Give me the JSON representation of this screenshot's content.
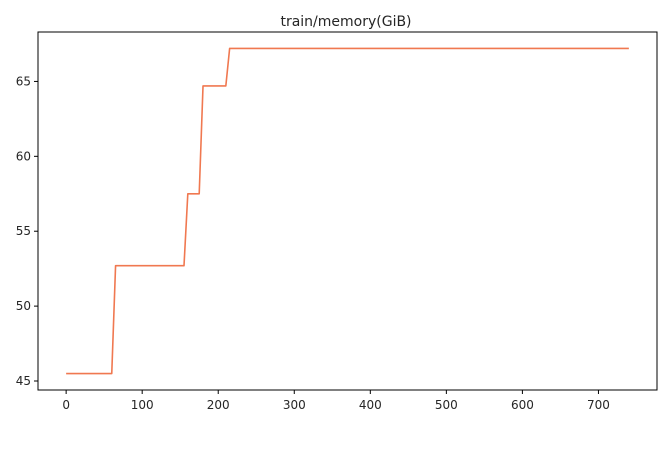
{
  "chart_data": {
    "type": "line",
    "title": "train/memory(GiB)",
    "xlabel": "",
    "ylabel": "",
    "xlim": [
      -37,
      777
    ],
    "ylim": [
      44.4,
      68.3
    ],
    "x_ticks": [
      0,
      100,
      200,
      300,
      400,
      500,
      600,
      700
    ],
    "y_ticks": [
      45,
      50,
      55,
      60,
      65
    ],
    "grid": false,
    "legend": "none",
    "series": [
      {
        "color": "#f07850",
        "x": [
          0,
          60,
          65,
          155,
          160,
          175,
          180,
          210,
          215,
          740
        ],
        "y": [
          45.5,
          45.5,
          52.7,
          52.7,
          57.5,
          57.5,
          64.7,
          64.7,
          67.2,
          67.2
        ]
      }
    ]
  }
}
